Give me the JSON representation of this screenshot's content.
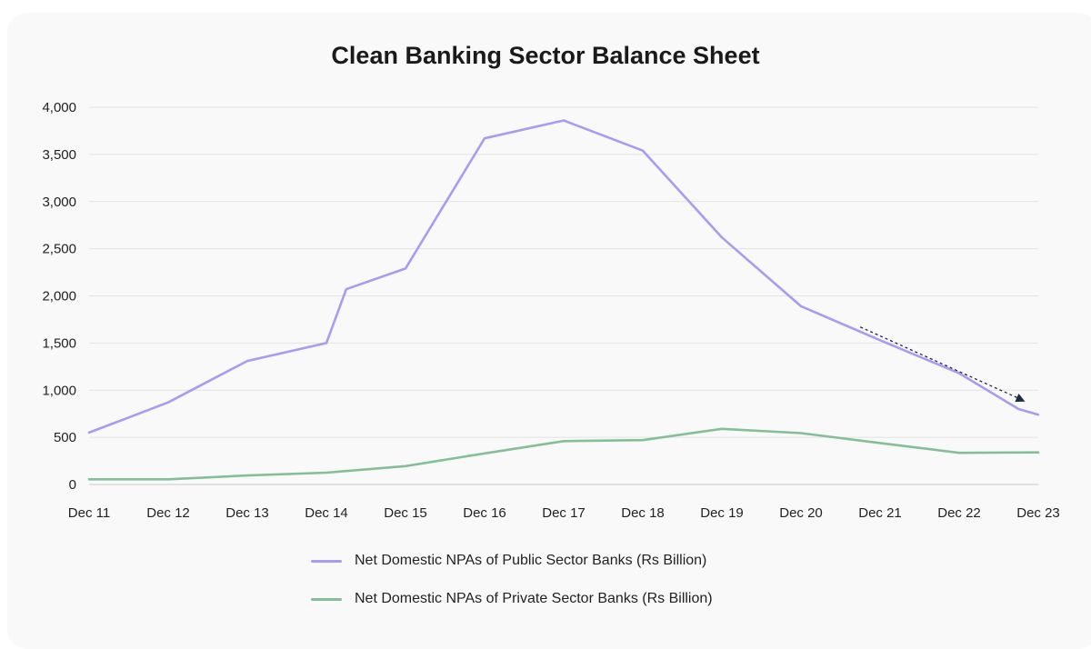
{
  "chart_data": {
    "type": "line",
    "title": "Clean Banking Sector Balance Sheet",
    "categories": [
      "Dec 11",
      "Dec 12",
      "Dec 13",
      "Dec 14",
      "Dec 15",
      "Dec 16",
      "Dec 17",
      "Dec 18",
      "Dec 19",
      "Dec 20",
      "Dec 21",
      "Dec 22",
      "Dec 23"
    ],
    "yticks": [
      "0",
      "500",
      "1,000",
      "1,500",
      "2,000",
      "2,500",
      "3,000",
      "3,500",
      "4,000"
    ],
    "ylim": [
      0,
      4000
    ],
    "grid": true,
    "legend_position": "bottom",
    "series": [
      {
        "name": "Net Domestic NPAs of Public Sector Banks (Rs Billion)",
        "color": "#a99bf2",
        "points": [
          {
            "x": "Dec 11",
            "y": 550
          },
          {
            "x": "Dec 12",
            "y": 870
          },
          {
            "x": "Dec 13",
            "y": 1310
          },
          {
            "x": "Dec 14",
            "y": 1500
          },
          {
            "x": "Mar 15",
            "y": 2070
          },
          {
            "x": "Dec 15",
            "y": 2290
          },
          {
            "x": "Dec 16",
            "y": 3670
          },
          {
            "x": "Dec 17",
            "y": 3860
          },
          {
            "x": "Dec 18",
            "y": 3540
          },
          {
            "x": "Dec 19",
            "y": 2620
          },
          {
            "x": "Dec 20",
            "y": 1890
          },
          {
            "x": "Dec 21",
            "y": 1530
          },
          {
            "x": "Dec 22",
            "y": 1180
          },
          {
            "x": "Sep 23",
            "y": 800
          },
          {
            "x": "Dec 23",
            "y": 740
          }
        ]
      },
      {
        "name": "Net Domestic NPAs of Private Sector Banks (Rs Billion)",
        "color": "#84bf97",
        "points": [
          {
            "x": "Dec 11",
            "y": 55
          },
          {
            "x": "Dec 12",
            "y": 55
          },
          {
            "x": "Dec 13",
            "y": 95
          },
          {
            "x": "Dec 14",
            "y": 125
          },
          {
            "x": "Dec 15",
            "y": 195
          },
          {
            "x": "Dec 16",
            "y": 330
          },
          {
            "x": "Dec 17",
            "y": 460
          },
          {
            "x": "Dec 18",
            "y": 470
          },
          {
            "x": "Dec 19",
            "y": 590
          },
          {
            "x": "Dec 20",
            "y": 545
          },
          {
            "x": "Dec 21",
            "y": 440
          },
          {
            "x": "Dec 22",
            "y": 335
          },
          {
            "x": "Dec 23",
            "y": 340
          }
        ]
      }
    ],
    "annotations": [
      {
        "type": "dotted-arrow",
        "direction": "down-right",
        "note_value_range": [
          1670,
          880
        ],
        "color": "#1f2a44"
      }
    ]
  }
}
